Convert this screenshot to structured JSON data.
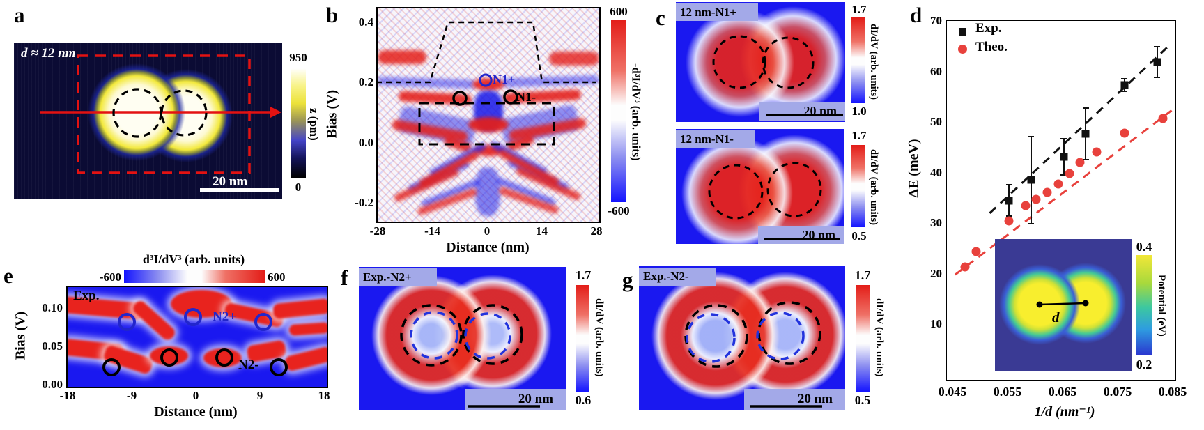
{
  "colors": {
    "map_blue": "#1a18f0",
    "red": "#e8231e",
    "lavender_strip": "#a3a9e8",
    "topo_bg": "#0b0b34",
    "inset_bg": "#3a3a94",
    "accent_blue_marker": "#2226cc",
    "exp_black": "#111111",
    "theo_red": "#e8413c"
  },
  "panels": {
    "a": {
      "letter": "a",
      "annotation": "d ≈ 12 nm",
      "scalebar": "20 nm",
      "colorbar": {
        "max": "950",
        "min": "0",
        "label": "z (pm)"
      }
    },
    "b": {
      "letter": "b",
      "ylabel": "Bias (V)",
      "xlabel": "Distance (nm)",
      "yticks": [
        "0.4",
        "0.2",
        "0.0",
        "-0.2"
      ],
      "xticks": [
        "-28",
        "-14",
        "0",
        "14",
        "28"
      ],
      "marker_pos": "N1+",
      "marker_neg": "N1-",
      "colorbar": {
        "max": "600",
        "min": "-600",
        "label": "-d³I/dV³ (arb. units)"
      }
    },
    "c": {
      "letter": "c",
      "maps": [
        {
          "title": "12 nm-N1+",
          "scalebar": "20 nm",
          "colorbar": {
            "max": "1.7",
            "min": "1.0",
            "label": "dI/dV (arb. units)"
          }
        },
        {
          "title": "12 nm-N1-",
          "scalebar": "20 nm",
          "colorbar": {
            "max": "1.7",
            "min": "0.5",
            "label": "dI/dV (arb. units)"
          }
        }
      ]
    },
    "d": {
      "letter": "d",
      "legend": [
        {
          "label": "Exp."
        },
        {
          "label": "Theo."
        }
      ],
      "ylabel": "ΔE (meV)",
      "xlabel": "1/d (nm⁻¹)",
      "yticks": [
        "70",
        "60",
        "50",
        "40",
        "30",
        "20",
        "10"
      ],
      "xticks": [
        "0.045",
        "0.055",
        "0.065",
        "0.075",
        "0.085"
      ],
      "inset": {
        "distance_label": "d",
        "colorbar": {
          "max": "0.4",
          "min": "0.2",
          "label": "Potential (eV)"
        }
      }
    },
    "e": {
      "letter": "e",
      "cb_title": "d³I/dV³ (arb. units)",
      "cb_min": "-600",
      "cb_max": "600",
      "annotation": "Exp.",
      "ylabel": "Bias (V)",
      "xlabel": "Distance (nm)",
      "yticks": [
        "0.10",
        "0.05",
        "0.00"
      ],
      "xticks": [
        "-18",
        "-9",
        "0",
        "9",
        "18"
      ],
      "marker_pos": "N2+",
      "marker_neg": "N2-"
    },
    "f": {
      "letter": "f",
      "title": "Exp.-N2+",
      "scalebar": "20 nm",
      "colorbar": {
        "max": "1.7",
        "min": "0.6",
        "label": "dI/dV (arb. units)"
      }
    },
    "g": {
      "letter": "g",
      "title": "Exp.-N2-",
      "scalebar": "20 nm",
      "colorbar": {
        "max": "1.7",
        "min": "0.5",
        "label": "dI/dV (arb. units)"
      }
    }
  },
  "chart_data": {
    "type": "scatter",
    "title": "",
    "xlabel": "1/d (nm⁻¹)",
    "ylabel": "ΔE (meV)",
    "xlim": [
      0.0437,
      0.0852
    ],
    "ylim": [
      0,
      70
    ],
    "xticks": [
      0.045,
      0.055,
      0.065,
      0.075,
      0.085
    ],
    "yticks": [
      10,
      20,
      30,
      40,
      50,
      60,
      70
    ],
    "grid": false,
    "legend_position": "top-left",
    "series": [
      {
        "name": "Exp.",
        "marker": "square",
        "color": "#111111",
        "x": [
          0.055,
          0.059,
          0.065,
          0.069,
          0.076,
          0.082
        ],
        "y": [
          35,
          39,
          43.5,
          48,
          57.5,
          62
        ],
        "yerr": [
          3,
          8.5,
          3.5,
          5,
          1.2,
          3
        ],
        "fit": {
          "x1": 0.0515,
          "y1": 32.5,
          "x2": 0.084,
          "y2": 65
        }
      },
      {
        "name": "Theo.",
        "marker": "circle",
        "color": "#e8413c",
        "x": [
          0.047,
          0.049,
          0.055,
          0.058,
          0.06,
          0.062,
          0.064,
          0.066,
          0.068,
          0.071,
          0.076,
          0.083
        ],
        "y": [
          22,
          25,
          31,
          34,
          35.2,
          36.6,
          38.2,
          40.3,
          42.4,
          44.4,
          48.1,
          51
        ],
        "yerr": null,
        "fit": {
          "x1": 0.0452,
          "y1": 20.5,
          "x2": 0.0858,
          "y2": 53.5
        }
      }
    ]
  }
}
